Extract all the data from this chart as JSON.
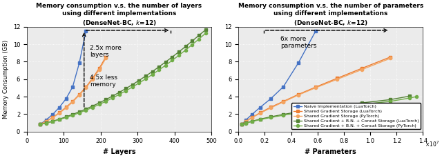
{
  "left_title": "Memory consumption v.s. the number of layers\nusing different implementations\n(DenseNet-BC, $k$=12)",
  "right_title": "Memory consumption v.s. the number of parameters\nusing different implementations\n(DenseNet-BC, $k$=12)",
  "left_xlabel": "# Layers",
  "right_xlabel": "# Parameters",
  "ylabel": "Memory Consumption (GB)",
  "left_xlim": [
    0,
    500
  ],
  "right_xlim": [
    0,
    14000000.0
  ],
  "ylim": [
    0,
    12
  ],
  "left_yticks": [
    0,
    2,
    4,
    6,
    8,
    10,
    12
  ],
  "right_yticks": [
    0,
    2,
    4,
    6,
    8,
    10,
    12
  ],
  "naive_lua_layers": [
    36,
    52,
    70,
    88,
    106,
    124,
    142,
    160
  ],
  "naive_lua_mem": [
    0.82,
    1.32,
    1.97,
    2.77,
    3.75,
    5.12,
    7.85,
    11.55
  ],
  "shared_grad_lua_layers": [
    36,
    52,
    70,
    88,
    106,
    124,
    142,
    160,
    178,
    196,
    214
  ],
  "shared_grad_lua_mem": [
    0.82,
    1.18,
    1.62,
    2.15,
    2.78,
    3.45,
    4.25,
    5.1,
    6.1,
    7.25,
    8.55
  ],
  "shared_grad_py_layers": [
    36,
    52,
    70,
    88,
    106,
    124,
    142,
    160,
    178,
    196,
    214
  ],
  "shared_grad_py_mem": [
    0.82,
    1.15,
    1.58,
    2.1,
    2.7,
    3.38,
    4.18,
    5.02,
    5.98,
    7.1,
    8.4
  ],
  "shared_full_lua_layers": [
    36,
    52,
    70,
    88,
    106,
    124,
    142,
    160,
    178,
    196,
    214,
    232,
    250,
    268,
    286,
    304,
    322,
    340,
    358,
    376,
    394,
    412,
    430,
    448,
    466,
    484
  ],
  "shared_full_lua_mem": [
    0.82,
    0.98,
    1.18,
    1.42,
    1.68,
    1.96,
    2.26,
    2.58,
    2.92,
    3.28,
    3.66,
    4.06,
    4.48,
    4.92,
    5.38,
    5.86,
    6.36,
    6.88,
    7.42,
    7.98,
    8.55,
    9.14,
    9.75,
    10.38,
    11.02,
    11.65
  ],
  "shared_full_py_layers": [
    36,
    52,
    70,
    88,
    106,
    124,
    142,
    160,
    178,
    196,
    214,
    232,
    250,
    268,
    286,
    304,
    322,
    340,
    358,
    376,
    394,
    412,
    430,
    448,
    466,
    484
  ],
  "shared_full_py_mem": [
    0.8,
    0.95,
    1.14,
    1.36,
    1.6,
    1.86,
    2.14,
    2.44,
    2.76,
    3.1,
    3.46,
    3.84,
    4.24,
    4.66,
    5.1,
    5.56,
    6.04,
    6.54,
    7.06,
    7.6,
    8.16,
    8.74,
    9.34,
    9.96,
    10.6,
    11.26
  ],
  "naive_lua_params": [
    270000,
    570000,
    1030000,
    1650000,
    2440000,
    3400000,
    4540000,
    5870000
  ],
  "naive_lua_mem_p": [
    0.82,
    1.32,
    1.97,
    2.77,
    3.75,
    5.12,
    7.85,
    11.55
  ],
  "shared_grad_lua_params": [
    270000,
    570000,
    1030000,
    1650000,
    2440000,
    3400000,
    4540000,
    5870000,
    7480000,
    9370000,
    11540000
  ],
  "shared_grad_lua_mem_p": [
    0.82,
    1.18,
    1.62,
    2.15,
    2.78,
    3.45,
    4.25,
    5.1,
    6.1,
    7.25,
    8.55
  ],
  "shared_grad_py_params": [
    270000,
    570000,
    1030000,
    1650000,
    2440000,
    3400000,
    4540000,
    5870000,
    7480000,
    9370000,
    11540000
  ],
  "shared_grad_py_mem_p": [
    0.82,
    1.15,
    1.58,
    2.1,
    2.7,
    3.38,
    4.18,
    5.02,
    5.98,
    7.1,
    8.4
  ],
  "shared_full_lua_params": [
    270000,
    570000,
    1030000,
    1650000,
    2440000,
    3400000,
    4540000,
    5870000,
    7480000,
    9370000,
    11540000,
    13000000
  ],
  "shared_full_lua_mem_p": [
    0.82,
    0.98,
    1.18,
    1.42,
    1.68,
    1.96,
    2.26,
    2.58,
    2.92,
    3.28,
    3.66,
    4.06
  ],
  "shared_full_py_params": [
    270000,
    570000,
    1030000,
    1650000,
    2440000,
    3400000,
    4540000,
    5870000,
    7480000,
    9370000,
    11540000,
    13000000,
    13500000
  ],
  "shared_full_py_mem_p": [
    0.8,
    0.95,
    1.14,
    1.36,
    1.6,
    1.86,
    2.14,
    2.44,
    2.76,
    3.1,
    3.46,
    3.84,
    4.0
  ],
  "color_naive_lua": "#4472C4",
  "color_shared_lua": "#ED7D31",
  "color_shared_py": "#F4A460",
  "color_full_lua": "#548235",
  "color_full_py": "#70AD47",
  "legend_labels": [
    "Naive Implementation (LuaTorch)",
    "Shared Gradient Storage (LuaTorch)",
    "Shared Gradient Storage (PyTorch)",
    "Shared Gradient + B.N. + Concat Storage (LuaTorch)",
    "Shared Gradient + B.N. + Concat Storage (PyTorch)"
  ]
}
